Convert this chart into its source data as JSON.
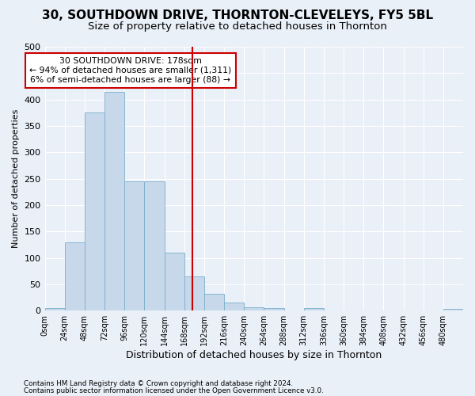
{
  "title1": "30, SOUTHDOWN DRIVE, THORNTON-CLEVELEYS, FY5 5BL",
  "title2": "Size of property relative to detached houses in Thornton",
  "xlabel": "Distribution of detached houses by size in Thornton",
  "ylabel": "Number of detached properties",
  "footer1": "Contains HM Land Registry data © Crown copyright and database right 2024.",
  "footer2": "Contains public sector information licensed under the Open Government Licence v3.0.",
  "bin_labels": [
    "0sqm",
    "24sqm",
    "48sqm",
    "72sqm",
    "96sqm",
    "120sqm",
    "144sqm",
    "168sqm",
    "192sqm",
    "216sqm",
    "240sqm",
    "264sqm",
    "288sqm",
    "312sqm",
    "336sqm",
    "360sqm",
    "384sqm",
    "408sqm",
    "432sqm",
    "456sqm",
    "480sqm"
  ],
  "bin_values": [
    5,
    130,
    375,
    415,
    245,
    245,
    110,
    65,
    32,
    15,
    7,
    5,
    0,
    5,
    0,
    0,
    0,
    0,
    0,
    0,
    3
  ],
  "bar_color": "#c8d8eb",
  "bar_edge_color": "#7aaecb",
  "property_value": 178,
  "property_label": "30 SOUTHDOWN DRIVE: 178sqm",
  "annotation_line1": "← 94% of detached houses are smaller (1,311)",
  "annotation_line2": "6% of semi-detached houses are larger (88) →",
  "vline_color": "#cc0000",
  "annotation_box_edge": "#cc0000",
  "ylim": [
    0,
    500
  ],
  "xlim_max": 504,
  "bg_color": "#eaf0f8",
  "grid_color": "#ffffff",
  "title1_fontsize": 11,
  "title2_fontsize": 9.5
}
